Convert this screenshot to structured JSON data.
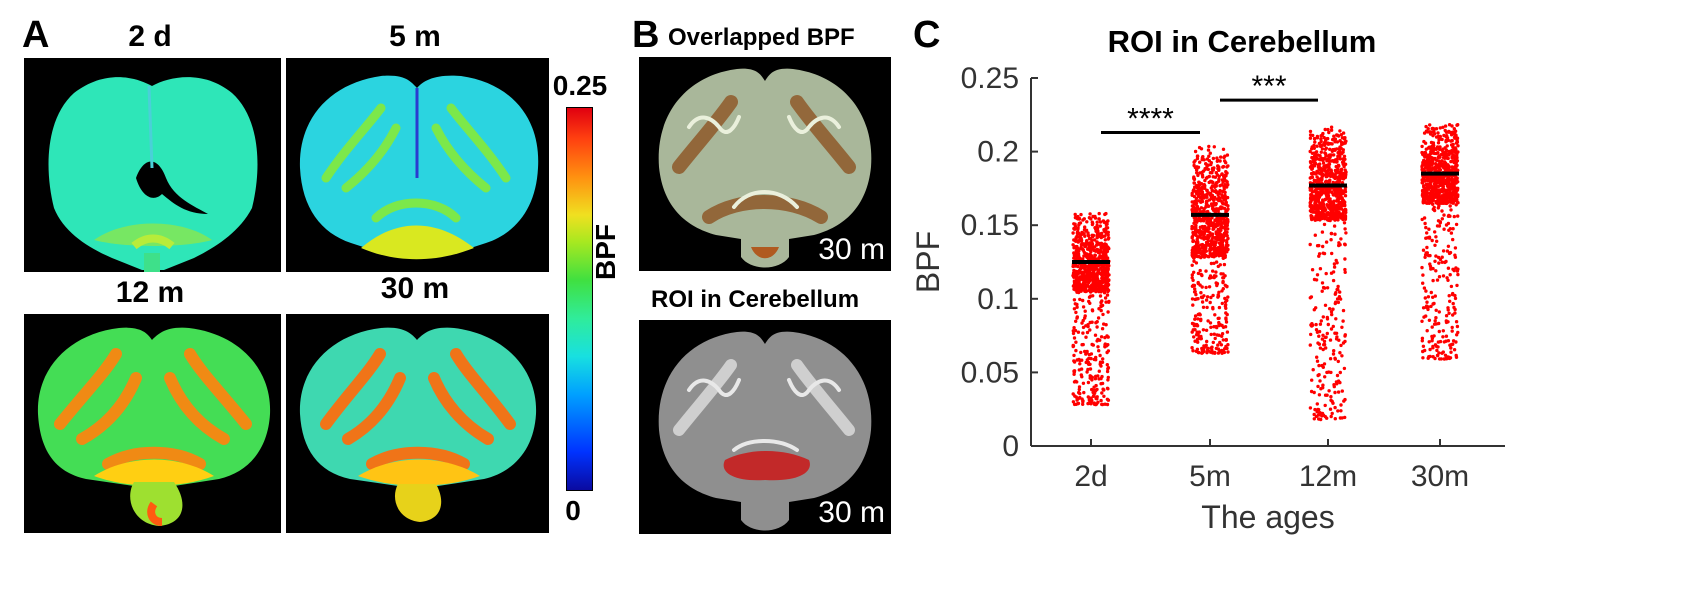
{
  "panel_a": {
    "letter": "A",
    "ages": [
      "2 d",
      "5 m",
      "12 m",
      "30 m"
    ],
    "colorbar": {
      "max_label": "0.25",
      "min_label": "0",
      "title": "BPF"
    }
  },
  "panel_b": {
    "letter": "B",
    "top_title": "Overlapped BPF",
    "bottom_title": "ROI in Cerebellum",
    "top_corner": "30 m",
    "bottom_corner": "30 m"
  },
  "panel_c": {
    "letter": "C"
  },
  "colors": {
    "points": "#ff0000",
    "median": "#000000",
    "roi": "#c81e1e"
  },
  "chart_data": {
    "type": "scatter",
    "title": "ROI in Cerebellum",
    "xlabel": "The ages",
    "ylabel": "BPF",
    "categories": [
      "2d",
      "5m",
      "12m",
      "30m"
    ],
    "ylim": [
      0,
      0.25
    ],
    "yticks": [
      0,
      0.05,
      0.1,
      0.15,
      0.2,
      0.25
    ],
    "ytick_labels": [
      "0",
      "0.05",
      "0.1",
      "0.15",
      "0.2",
      "0.25"
    ],
    "medians": [
      0.125,
      0.157,
      0.177,
      0.185
    ],
    "ranges": [
      [
        0.028,
        0.159
      ],
      [
        0.063,
        0.206
      ],
      [
        0.018,
        0.217
      ],
      [
        0.059,
        0.219
      ]
    ],
    "significance": [
      {
        "from": "2d",
        "to": "5m",
        "y": 0.213,
        "label": "****"
      },
      {
        "from": "5m",
        "to": "12m",
        "y": 0.235,
        "label": "***"
      }
    ]
  }
}
